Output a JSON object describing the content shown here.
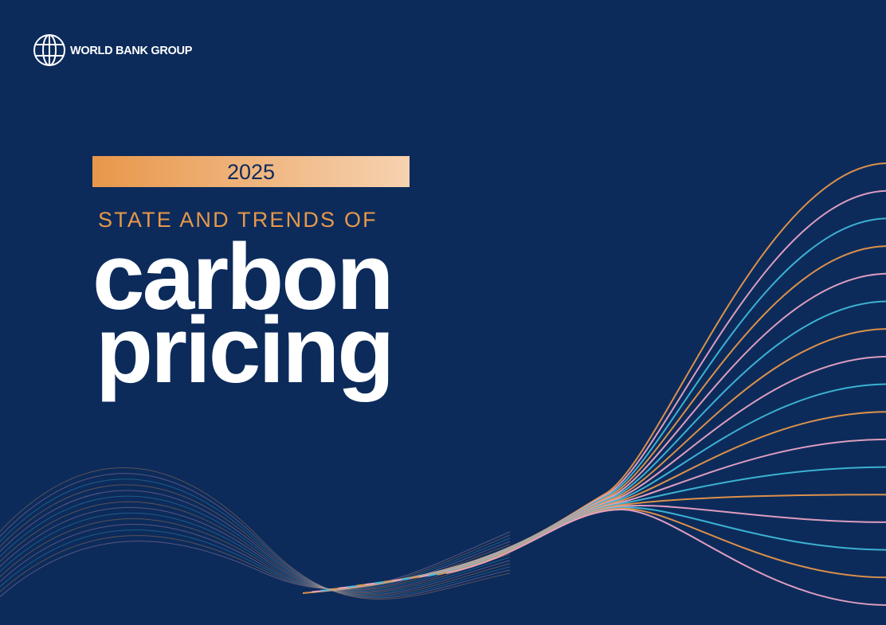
{
  "logo": {
    "text": "WORLD BANK GROUP"
  },
  "cover": {
    "year": "2025",
    "subtitle": "STATE AND TRENDS OF",
    "title_lines": [
      "carbon",
      "pricing"
    ]
  }
}
